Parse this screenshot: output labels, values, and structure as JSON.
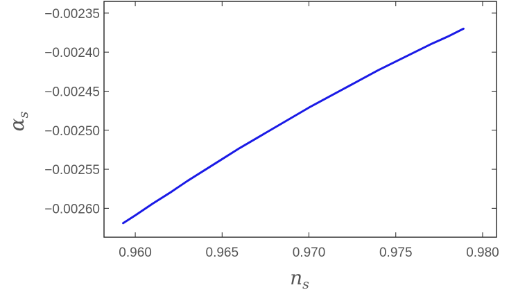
{
  "chart_data": {
    "type": "line",
    "title": "",
    "xlabel": {
      "base": "n",
      "sub": "s"
    },
    "ylabel": {
      "base": "α",
      "sub": "s"
    },
    "xlim": [
      0.9582,
      0.9808
    ],
    "ylim": [
      -0.002637,
      -0.002335
    ],
    "x_ticks": [
      0.96,
      0.965,
      0.97,
      0.975,
      0.98
    ],
    "x_tick_labels": [
      "0.960",
      "0.965",
      "0.970",
      "0.975",
      "0.980"
    ],
    "y_ticks": [
      -0.00235,
      -0.0024,
      -0.00245,
      -0.0025,
      -0.00255,
      -0.0026
    ],
    "y_tick_labels": [
      "−0.00235",
      "−0.00240",
      "−0.00245",
      "−0.00250",
      "−0.00255",
      "−0.00260"
    ],
    "grid": false,
    "legend": "none",
    "series": [
      {
        "color": "#1a1ae6",
        "x": [
          0.9593,
          0.96,
          0.961,
          0.962,
          0.963,
          0.964,
          0.965,
          0.966,
          0.967,
          0.968,
          0.969,
          0.97,
          0.971,
          0.972,
          0.973,
          0.974,
          0.975,
          0.976,
          0.977,
          0.978,
          0.9789
        ],
        "values": [
          -0.002619,
          -0.002609,
          -0.002594,
          -0.00258,
          -0.002565,
          -0.002551,
          -0.002537,
          -0.002523,
          -0.00251,
          -0.002497,
          -0.002484,
          -0.002471,
          -0.002459,
          -0.002447,
          -0.002435,
          -0.002423,
          -0.002412,
          -0.002401,
          -0.00239,
          -0.00238,
          -0.00237
        ]
      }
    ]
  }
}
